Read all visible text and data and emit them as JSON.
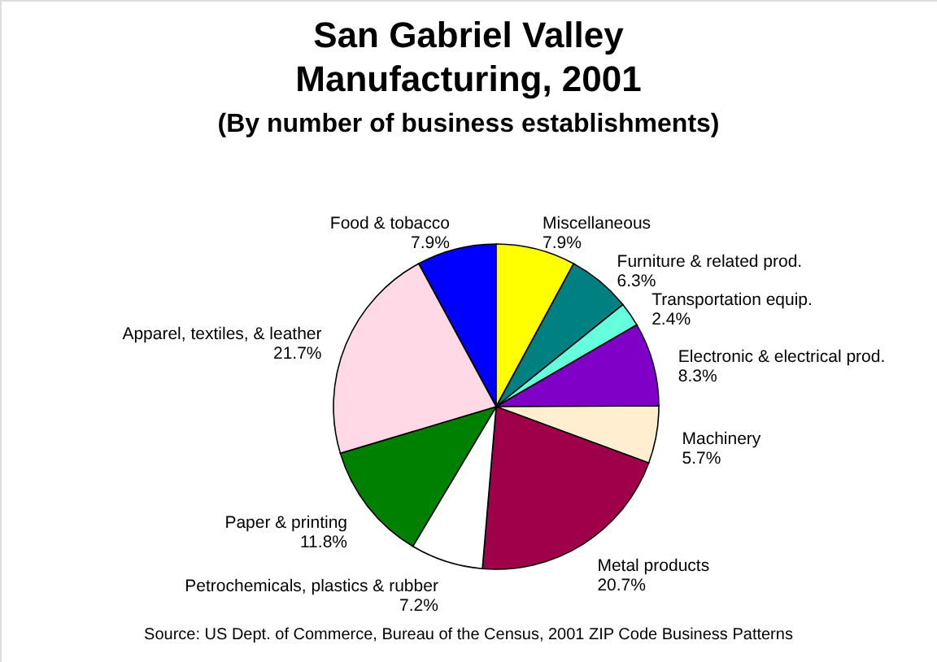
{
  "chart_data": {
    "type": "pie",
    "title": "San Gabriel Valley\nManufacturing, 2001",
    "subtitle": "(By number of business establishments)",
    "categories": [
      "Food & tobacco",
      "Miscellaneous",
      "Furniture & related prod.",
      "Transportation equip.",
      "Electronic & electrical prod.",
      "Machinery",
      "Metal products",
      "Petrochemicals, plastics & rubber",
      "Paper & printing",
      "Apparel, textiles, & leather"
    ],
    "values": [
      7.9,
      7.9,
      6.3,
      2.4,
      8.3,
      5.7,
      20.7,
      7.2,
      11.8,
      21.7
    ],
    "value_labels": [
      "7.9%",
      "7.9%",
      "6.3%",
      "2.4%",
      "8.3%",
      "5.7%",
      "20.7%",
      "7.2%",
      "11.8%",
      "21.7%"
    ],
    "colors": [
      "#0000ff",
      "#ffff00",
      "#008080",
      "#66ffdd",
      "#8000c8",
      "#ffeed0",
      "#a0004a",
      "#ffffff",
      "#008000",
      "#ffdae6"
    ],
    "annotations": [
      "Source: US Dept. of Commerce, Bureau of the Census, 2001 ZIP Code Business Patterns"
    ]
  }
}
